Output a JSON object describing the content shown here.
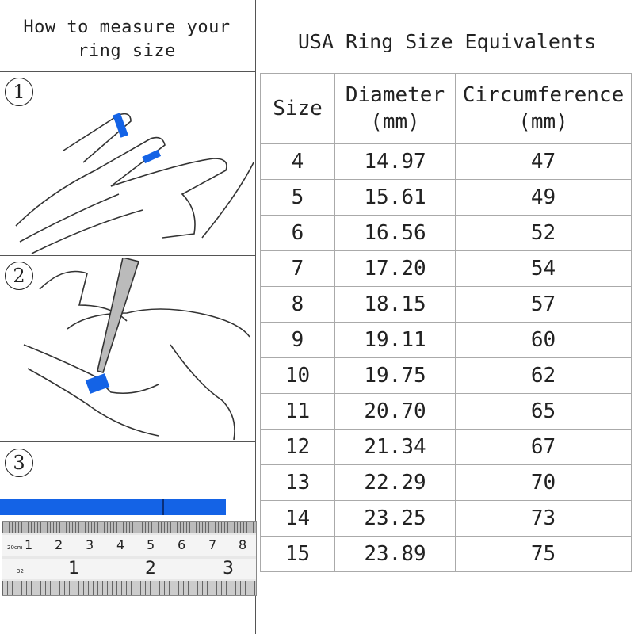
{
  "left": {
    "title_line1": "How to measure your",
    "title_line2": "ring size",
    "steps": [
      "1",
      "2",
      "3"
    ],
    "ruler": {
      "cm_labels": [
        "1",
        "2",
        "3",
        "4",
        "5",
        "6",
        "7",
        "8"
      ],
      "inch_labels": [
        "1",
        "2",
        "3"
      ],
      "unit_label": "20cm",
      "small_label": "32"
    },
    "strip_color": "#1463e6"
  },
  "table": {
    "title": "USA Ring Size Equivalents",
    "headers": {
      "size": "Size",
      "diameter": "Diameter",
      "diameter_unit": "(mm)",
      "circumference": "Circumference",
      "circumference_unit": "(mm)"
    },
    "rows": [
      {
        "size": "4",
        "diameter": "14.97",
        "circumference": "47"
      },
      {
        "size": "5",
        "diameter": "15.61",
        "circumference": "49"
      },
      {
        "size": "6",
        "diameter": "16.56",
        "circumference": "52"
      },
      {
        "size": "7",
        "diameter": "17.20",
        "circumference": "54"
      },
      {
        "size": "8",
        "diameter": "18.15",
        "circumference": "57"
      },
      {
        "size": "9",
        "diameter": "19.11",
        "circumference": "60"
      },
      {
        "size": "10",
        "diameter": "19.75",
        "circumference": "62"
      },
      {
        "size": "11",
        "diameter": "20.70",
        "circumference": "65"
      },
      {
        "size": "12",
        "diameter": "21.34",
        "circumference": "67"
      },
      {
        "size": "13",
        "diameter": "22.29",
        "circumference": "70"
      },
      {
        "size": "14",
        "diameter": "23.25",
        "circumference": "73"
      },
      {
        "size": "15",
        "diameter": "23.89",
        "circumference": "75"
      }
    ]
  }
}
